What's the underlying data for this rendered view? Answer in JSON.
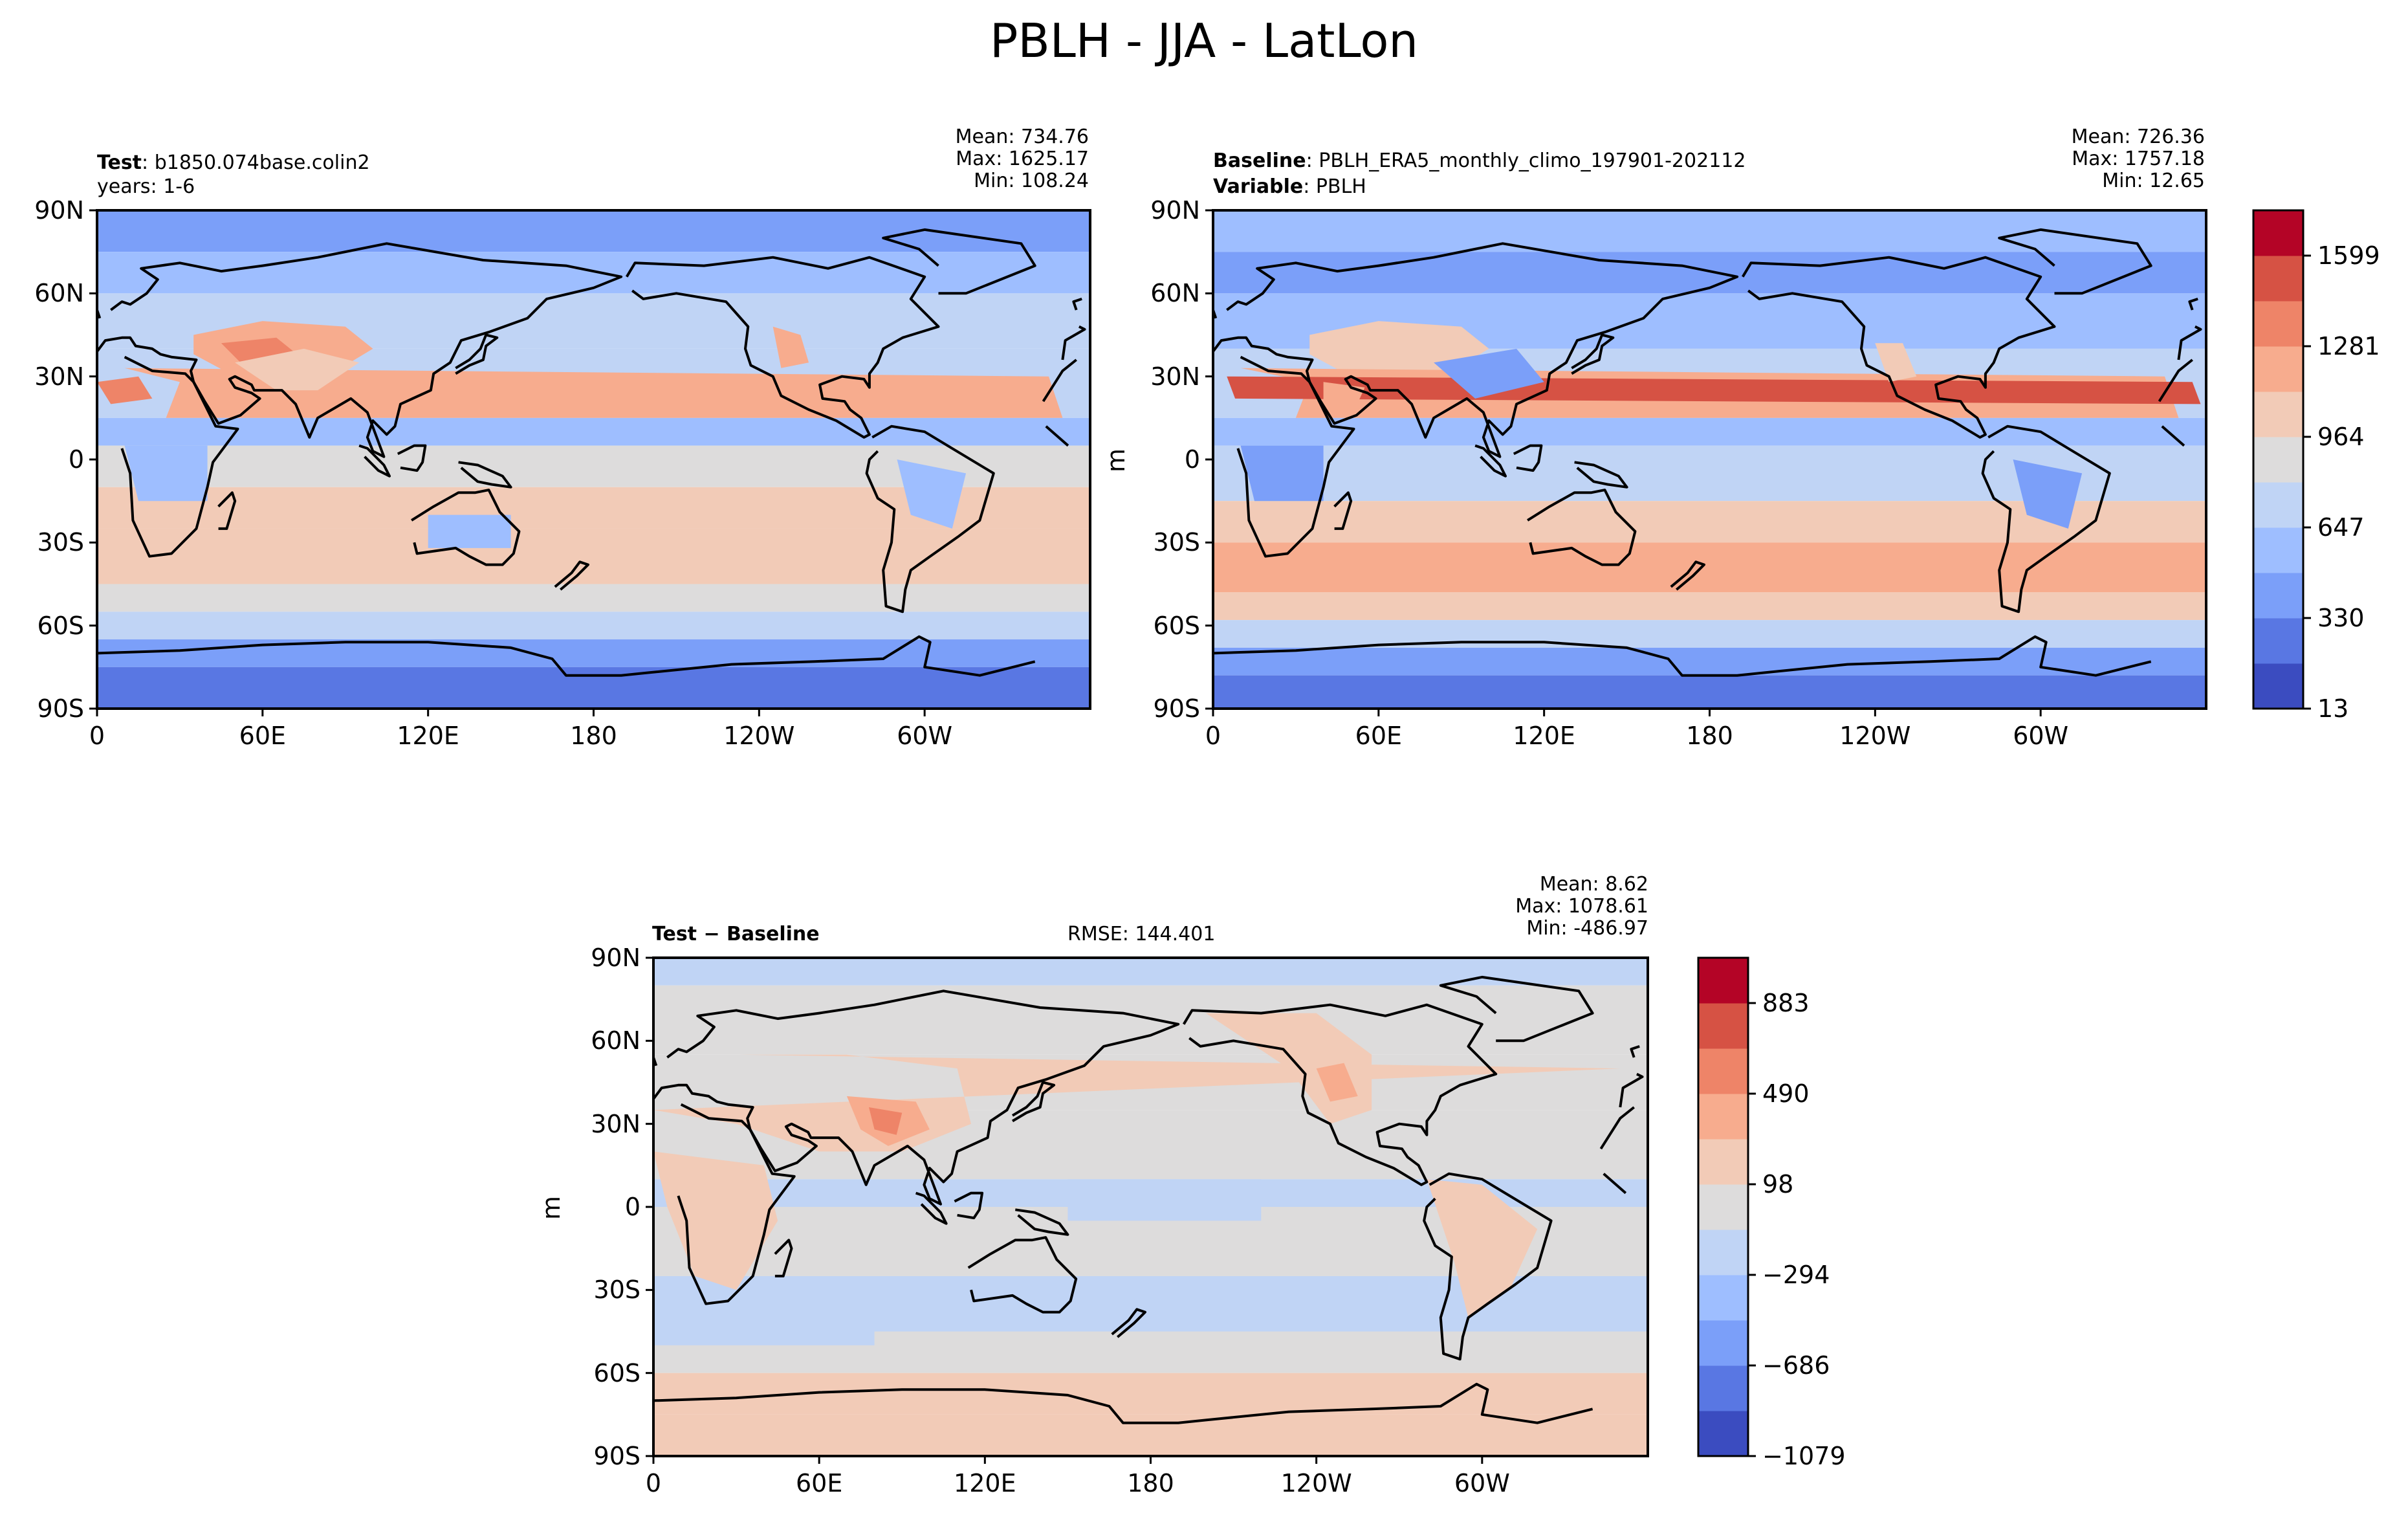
{
  "figure": {
    "title": "PBLH - JJA - LatLon"
  },
  "colors": {
    "levels": [
      "#3b4cc0",
      "#5977e3",
      "#7b9ff9",
      "#9ebeff",
      "#c0d4f5",
      "#dddcdc",
      "#f2cbb7",
      "#f7ac8e",
      "#ee8468",
      "#d65244",
      "#b40426"
    ],
    "coast": "#000000"
  },
  "axes": {
    "y_ticks": [
      "90N",
      "60N",
      "30N",
      "0",
      "30S",
      "60S",
      "90S"
    ],
    "x_ticks": [
      "0",
      "60E",
      "120E",
      "180",
      "120W",
      "60W"
    ]
  },
  "panels": {
    "test": {
      "label_bold": "Test",
      "label_value": "b1850.074base.colin2",
      "line2": "years: 1-6",
      "mean": "Mean: 734.76",
      "max": "Max: 1625.17",
      "min": "Min: 108.24"
    },
    "baseline": {
      "label_bold": "Baseline",
      "label_value": "PBLH_ERA5_monthly_climo_197901-202112",
      "line2_bold": "Variable",
      "line2_value": "PBLH",
      "mean": "Mean: 726.36",
      "max": "Max: 1757.18",
      "min": "Min: 12.65",
      "unit": "m"
    },
    "diff": {
      "label": "Test − Baseline",
      "rmse": "RMSE: 144.401",
      "mean": "Mean:  8.62",
      "max": "Max: 1078.61",
      "min": "Min: -486.97",
      "unit": "m"
    }
  },
  "colorbars": {
    "top": {
      "ticks": [
        "1599",
        "1281",
        "964",
        "647",
        "330",
        "13"
      ]
    },
    "bottom": {
      "ticks": [
        "883",
        "490",
        "98",
        "−294",
        "−686",
        "−1079"
      ]
    }
  }
}
